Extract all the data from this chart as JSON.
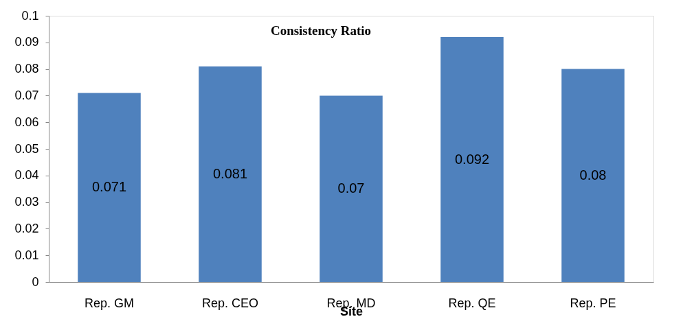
{
  "chart_data": {
    "type": "bar",
    "title": "Consistency Ratio",
    "xlabel": "Site",
    "categories": [
      "Rep. GM",
      "Rep. CEO",
      "Rep. MD",
      "Rep. QE",
      "Rep. PE"
    ],
    "values": [
      0.071,
      0.081,
      0.07,
      0.092,
      0.08
    ],
    "color": "#4f81bd",
    "ylim": [
      0,
      0.1
    ],
    "yticks": [
      0,
      0.01,
      0.02,
      0.03,
      0.04,
      0.05,
      0.06,
      0.07,
      0.08,
      0.09,
      0.1
    ],
    "data_labels": true,
    "grid": false
  }
}
